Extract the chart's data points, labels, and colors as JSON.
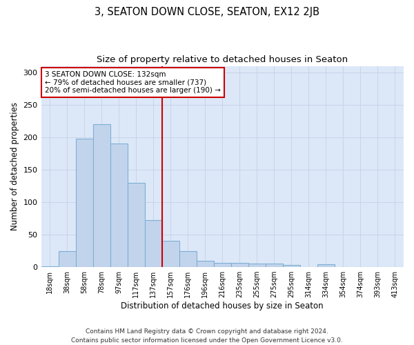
{
  "title": "3, SEATON DOWN CLOSE, SEATON, EX12 2JB",
  "subtitle": "Size of property relative to detached houses in Seaton",
  "xlabel": "Distribution of detached houses by size in Seaton",
  "ylabel": "Number of detached properties",
  "categories": [
    "18sqm",
    "38sqm",
    "58sqm",
    "78sqm",
    "97sqm",
    "117sqm",
    "137sqm",
    "157sqm",
    "176sqm",
    "196sqm",
    "216sqm",
    "235sqm",
    "255sqm",
    "275sqm",
    "295sqm",
    "314sqm",
    "334sqm",
    "354sqm",
    "374sqm",
    "393sqm",
    "413sqm"
  ],
  "values": [
    1,
    25,
    198,
    220,
    190,
    130,
    72,
    40,
    25,
    10,
    7,
    7,
    5,
    5,
    3,
    0,
    4,
    0,
    0,
    0,
    0
  ],
  "bar_color": "#c2d4ec",
  "bar_edge_color": "#7fafd4",
  "vline_x": 6.5,
  "vline_color": "#cc0000",
  "annotation_text": "3 SEATON DOWN CLOSE: 132sqm\n← 79% of detached houses are smaller (737)\n20% of semi-detached houses are larger (190) →",
  "annotation_box_color": "#ffffff",
  "annotation_box_edge_color": "#cc0000",
  "ylim": [
    0,
    310
  ],
  "yticks": [
    0,
    50,
    100,
    150,
    200,
    250,
    300
  ],
  "grid_color": "#c8d4e8",
  "bg_color": "#dce8f8",
  "footer_line1": "Contains HM Land Registry data © Crown copyright and database right 2024.",
  "footer_line2": "Contains public sector information licensed under the Open Government Licence v3.0.",
  "title_fontsize": 10.5,
  "subtitle_fontsize": 9.5,
  "annotation_fontsize": 7.5,
  "xlabel_fontsize": 8.5,
  "ylabel_fontsize": 8.5,
  "footer_fontsize": 6.5
}
